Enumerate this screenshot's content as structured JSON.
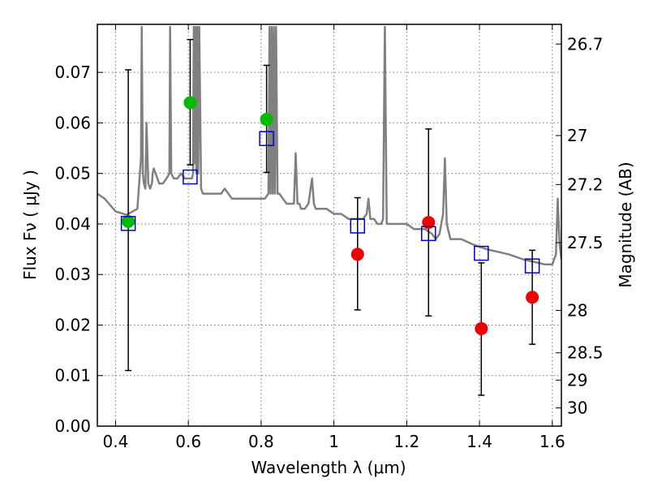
{
  "chart_data": {
    "type": "scatter",
    "title": "",
    "xlabel": "Wavelength  λ (μm)",
    "ylabel": "Flux  Fν  ( μJy )",
    "ylabel_right": "Magnitude (AB)",
    "xlim": [
      0.35,
      1.625
    ],
    "ylim": [
      0,
      0.0795
    ],
    "grid": true,
    "x_ticks": [
      0.4,
      0.6,
      0.8,
      1.0,
      1.2,
      1.4,
      1.6
    ],
    "x_tick_labels": [
      "0.4",
      "0.6",
      "0.8",
      "1",
      "1.2",
      "1.4",
      "1.6"
    ],
    "y_ticks": [
      0.0,
      0.01,
      0.02,
      0.03,
      0.04,
      0.05,
      0.06,
      0.07
    ],
    "y_tick_labels": [
      "0.00",
      "0.01",
      "0.02",
      "0.03",
      "0.04",
      "0.05",
      "0.06",
      "0.07"
    ],
    "right_ticks": [
      {
        "label": "26.7",
        "flux": 0.0756
      },
      {
        "label": "27",
        "flux": 0.0575
      },
      {
        "label": "27.2",
        "flux": 0.0478
      },
      {
        "label": "27.5",
        "flux": 0.0363
      },
      {
        "label": "28",
        "flux": 0.0229
      },
      {
        "label": "28.5",
        "flux": 0.0145
      },
      {
        "label": "29",
        "flux": 0.0091
      },
      {
        "label": "30",
        "flux": 0.0036
      }
    ],
    "series": [
      {
        "marker": "circle",
        "color": "#00bb00",
        "x": [
          0.435,
          0.605,
          0.815
        ],
        "y": [
          0.0405,
          0.064,
          0.0607
        ]
      },
      {
        "marker": "circle",
        "color": "#ee0000",
        "x": [
          1.065,
          1.26,
          1.405,
          1.545
        ],
        "y": [
          0.034,
          0.0403,
          0.0193,
          0.0255
        ]
      },
      {
        "marker": "open-square",
        "color": "#0000cc",
        "x": [
          0.435,
          0.605,
          0.815,
          1.065,
          1.26,
          1.405,
          1.545
        ],
        "y": [
          0.0401,
          0.0493,
          0.0569,
          0.0396,
          0.0381,
          0.0342,
          0.0317
        ]
      }
    ],
    "error_bars": [
      {
        "x": 0.435,
        "y_low": 0.011,
        "y_high": 0.0705
      },
      {
        "x": 0.605,
        "y_low": 0.0517,
        "y_high": 0.0765
      },
      {
        "x": 0.815,
        "y_low": 0.0502,
        "y_high": 0.0714
      },
      {
        "x": 1.065,
        "y_low": 0.023,
        "y_high": 0.0452
      },
      {
        "x": 1.26,
        "y_low": 0.0218,
        "y_high": 0.0588
      },
      {
        "x": 1.405,
        "y_low": 0.0061,
        "y_high": 0.0323
      },
      {
        "x": 1.545,
        "y_low": 0.0162,
        "y_high": 0.0348
      }
    ],
    "spectrum": {
      "color": "#808080",
      "x": [
        0.35,
        0.37,
        0.4,
        0.43,
        0.46,
        0.47,
        0.472,
        0.475,
        0.478,
        0.482,
        0.485,
        0.49,
        0.495,
        0.5,
        0.502,
        0.505,
        0.51,
        0.52,
        0.53,
        0.54,
        0.548,
        0.55,
        0.553,
        0.56,
        0.57,
        0.58,
        0.59,
        0.6,
        0.61,
        0.613,
        0.615,
        0.618,
        0.62,
        0.622,
        0.625,
        0.627,
        0.63,
        0.635,
        0.64,
        0.65,
        0.66,
        0.67,
        0.68,
        0.69,
        0.7,
        0.71,
        0.72,
        0.73,
        0.74,
        0.75,
        0.76,
        0.77,
        0.78,
        0.79,
        0.8,
        0.81,
        0.82,
        0.823,
        0.826,
        0.829,
        0.832,
        0.835,
        0.838,
        0.841,
        0.845,
        0.85,
        0.86,
        0.87,
        0.88,
        0.89,
        0.895,
        0.9,
        0.905,
        0.91,
        0.92,
        0.93,
        0.94,
        0.945,
        0.95,
        0.96,
        0.98,
        1.0,
        1.02,
        1.04,
        1.06,
        1.08,
        1.09,
        1.095,
        1.1,
        1.11,
        1.12,
        1.13,
        1.135,
        1.14,
        1.145,
        1.15,
        1.16,
        1.18,
        1.2,
        1.22,
        1.25,
        1.27,
        1.28,
        1.29,
        1.3,
        1.305,
        1.31,
        1.32,
        1.35,
        1.38,
        1.4,
        1.42,
        1.45,
        1.48,
        1.5,
        1.52,
        1.55,
        1.58,
        1.6,
        1.61,
        1.615,
        1.62,
        1.625
      ],
      "y": [
        0.046,
        0.045,
        0.0425,
        0.0418,
        0.043,
        0.053,
        0.079,
        0.05,
        0.048,
        0.047,
        0.06,
        0.048,
        0.047,
        0.048,
        0.05,
        0.051,
        0.05,
        0.048,
        0.048,
        0.049,
        0.05,
        0.079,
        0.05,
        0.049,
        0.049,
        0.05,
        0.049,
        0.049,
        0.049,
        0.05,
        0.079,
        0.052,
        0.079,
        0.05,
        0.079,
        0.05,
        0.079,
        0.047,
        0.046,
        0.046,
        0.046,
        0.046,
        0.046,
        0.046,
        0.047,
        0.046,
        0.045,
        0.045,
        0.045,
        0.045,
        0.045,
        0.045,
        0.045,
        0.045,
        0.045,
        0.045,
        0.046,
        0.079,
        0.046,
        0.079,
        0.046,
        0.079,
        0.046,
        0.079,
        0.046,
        0.046,
        0.045,
        0.044,
        0.044,
        0.044,
        0.054,
        0.044,
        0.044,
        0.043,
        0.043,
        0.044,
        0.049,
        0.044,
        0.043,
        0.043,
        0.043,
        0.042,
        0.042,
        0.041,
        0.041,
        0.041,
        0.042,
        0.045,
        0.041,
        0.041,
        0.04,
        0.04,
        0.041,
        0.079,
        0.04,
        0.04,
        0.04,
        0.04,
        0.04,
        0.039,
        0.039,
        0.038,
        0.037,
        0.038,
        0.042,
        0.053,
        0.04,
        0.037,
        0.037,
        0.036,
        0.0355,
        0.035,
        0.0345,
        0.034,
        0.0335,
        0.033,
        0.0325,
        0.032,
        0.032,
        0.034,
        0.045,
        0.036,
        0.033
      ]
    }
  }
}
